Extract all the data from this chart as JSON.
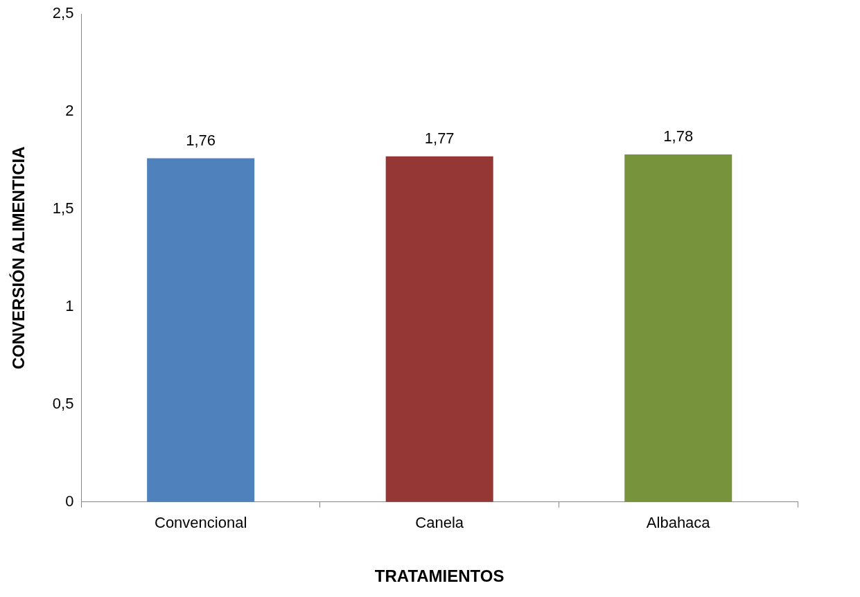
{
  "chart_data": {
    "type": "bar",
    "xlabel": "TRATAMIENTOS",
    "ylabel": "CONVERSIÓN ALIMENTICIA",
    "categories": [
      "Convencional",
      "Canela",
      "Albahaca"
    ],
    "values": [
      1.76,
      1.77,
      1.78
    ],
    "colors": [
      "#4f81bd",
      "#953735",
      "#77933c"
    ],
    "value_labels": [
      "1,76",
      "1,77",
      "1,78"
    ],
    "ylim": [
      0,
      2.5
    ],
    "yticks": [
      0,
      {
        "value": 0.5,
        "label": "0,5"
      },
      1,
      {
        "value": 1.5,
        "label": "1,5"
      },
      2,
      {
        "value": 2.5,
        "label": "2,5"
      }
    ],
    "grid": false,
    "legend": false
  }
}
